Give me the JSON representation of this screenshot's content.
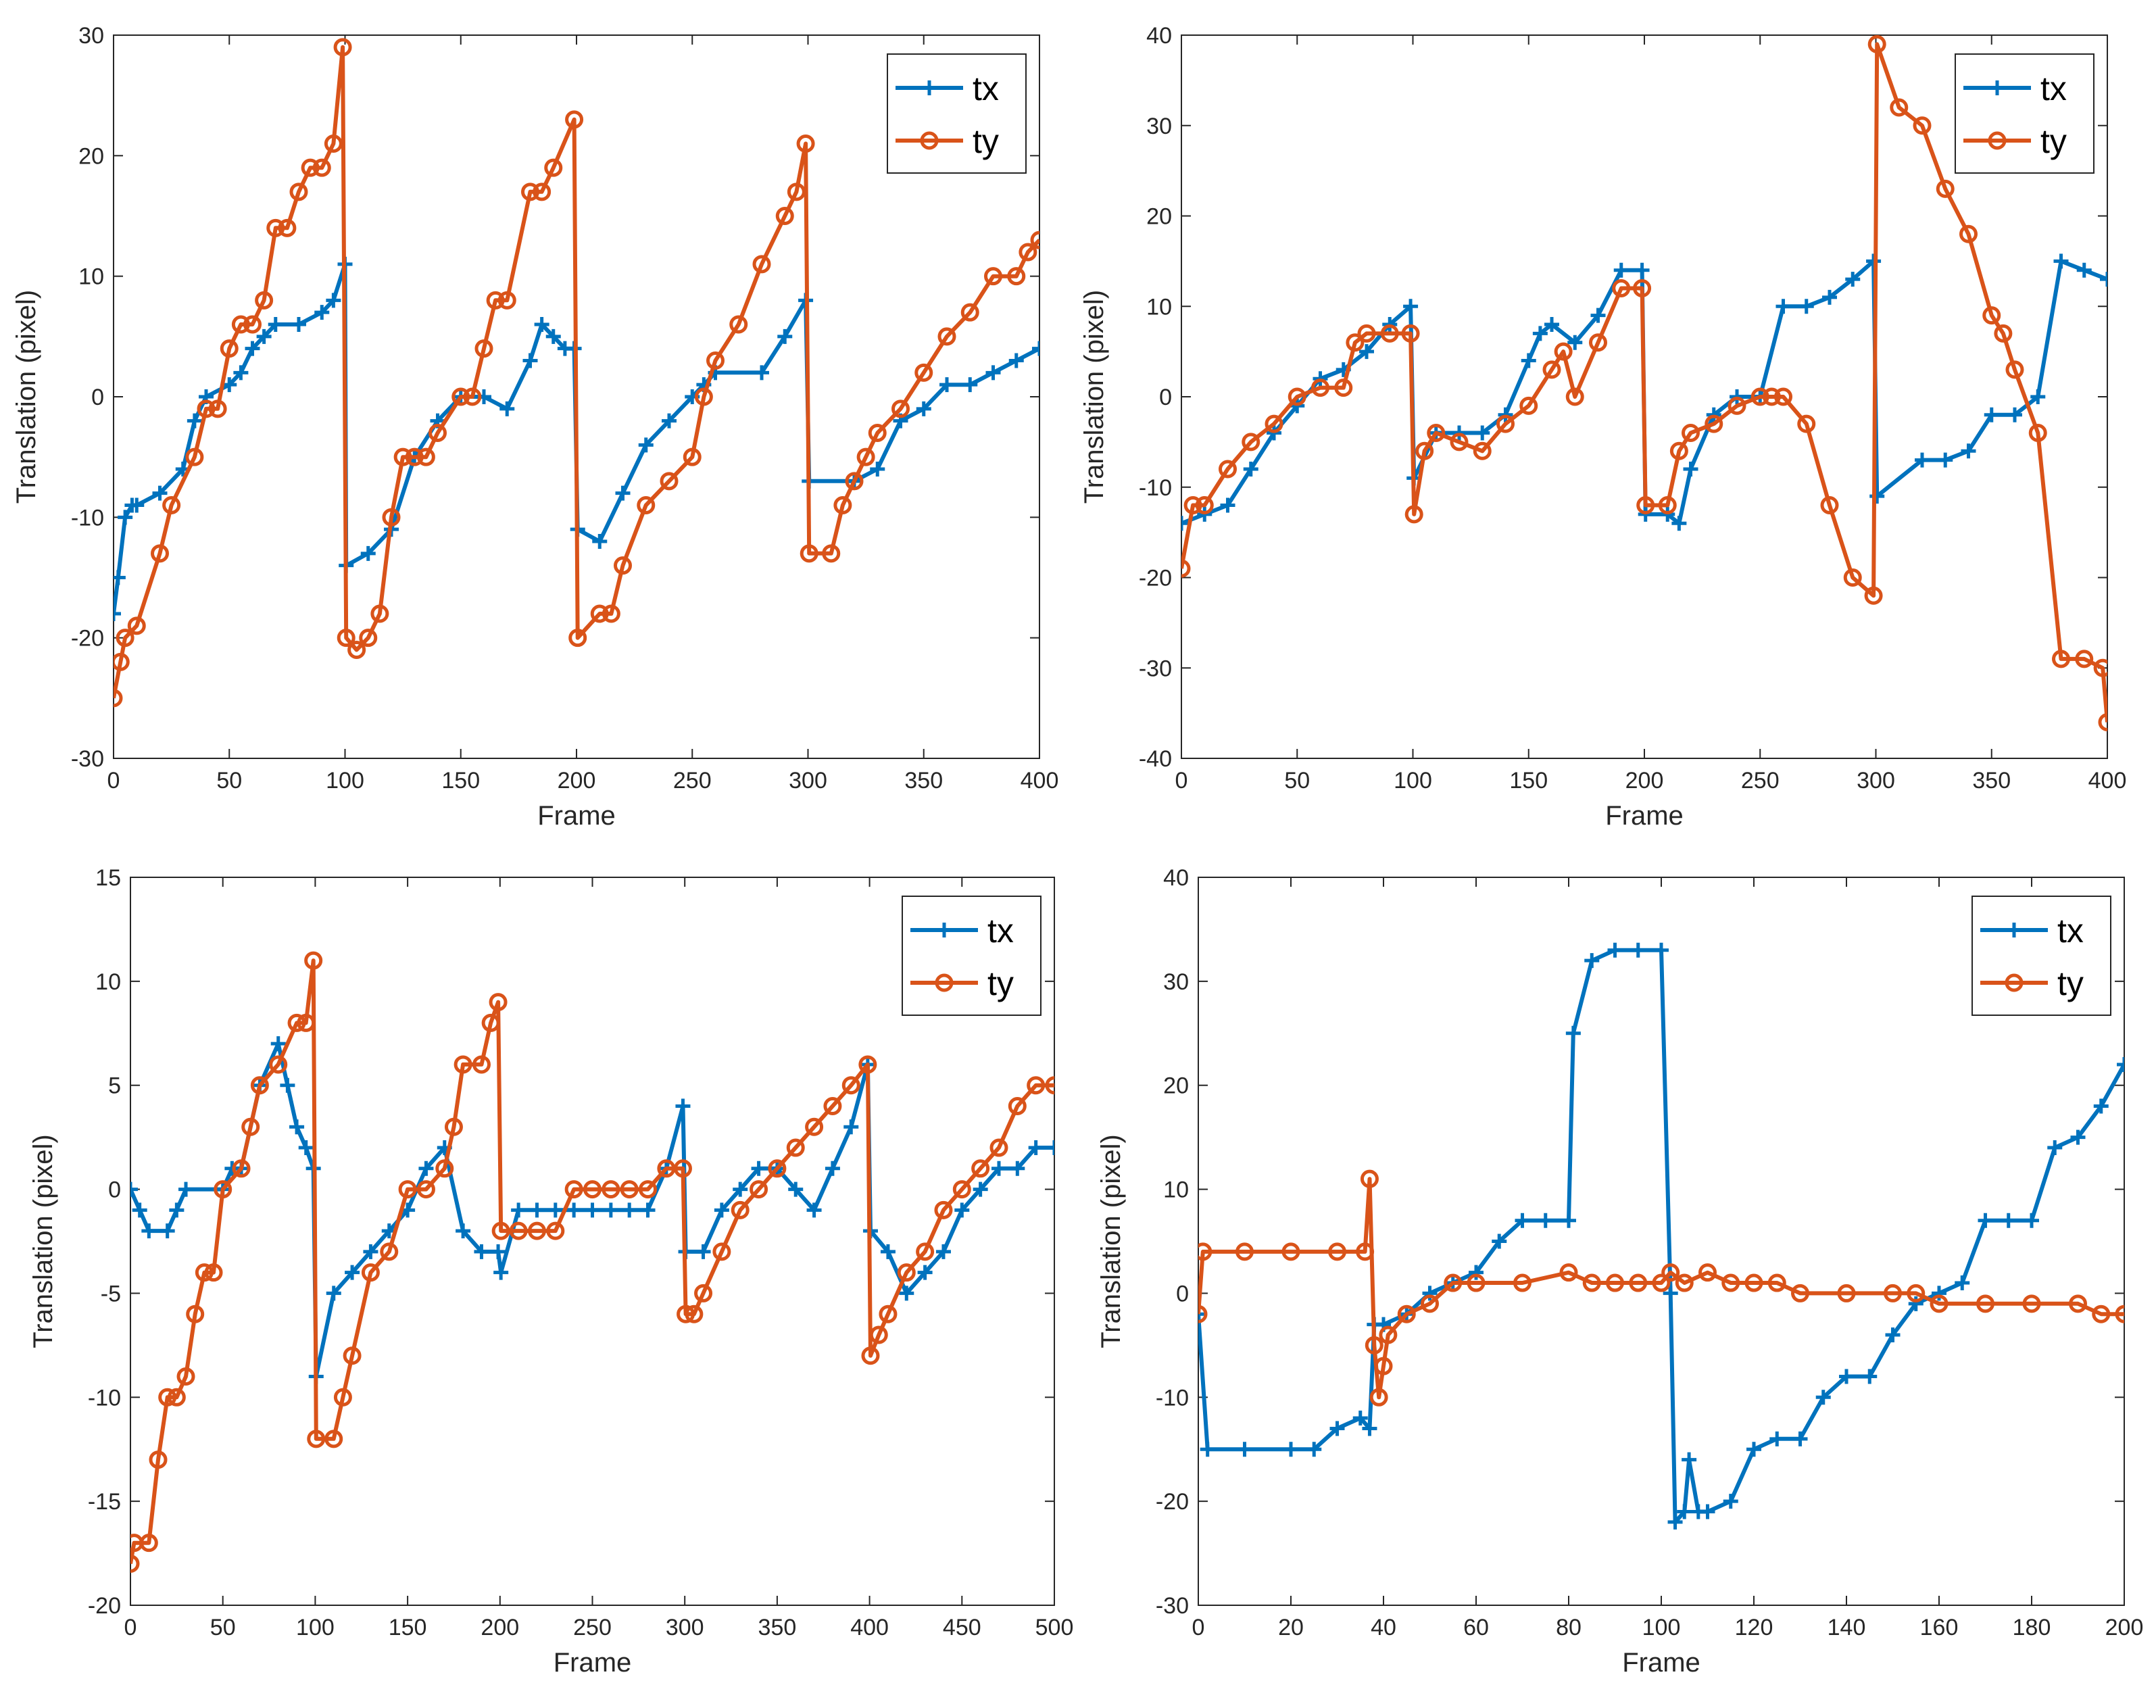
{
  "colors": {
    "tx": "#0072BD",
    "ty": "#D95319",
    "axis": "#262626"
  },
  "chart_data": [
    {
      "type": "line",
      "xlabel": "Frame",
      "ylabel": "Translation (pixel)",
      "xlim": [
        0,
        400
      ],
      "ylim": [
        -30,
        30
      ],
      "xticks": [
        0,
        50,
        100,
        150,
        200,
        250,
        300,
        350,
        400
      ],
      "yticks": [
        -30,
        -20,
        -10,
        0,
        10,
        20,
        30
      ],
      "legend": "top-right",
      "series": [
        {
          "name": "tx",
          "marker": "plus",
          "x": [
            0,
            2,
            5,
            8,
            10,
            20,
            30,
            35,
            40,
            50,
            55,
            60,
            65,
            70,
            80,
            90,
            95,
            100,
            100.5,
            110,
            120,
            130,
            140,
            150,
            160,
            170,
            180,
            185,
            190,
            195,
            199,
            200.5,
            210,
            220,
            230,
            240,
            250,
            255,
            260,
            280,
            290,
            299,
            300.5,
            320,
            330,
            340,
            350,
            360,
            370,
            380,
            390,
            400
          ],
          "y": [
            -18,
            -15,
            -10,
            -9,
            -9,
            -8,
            -6,
            -2,
            0,
            1,
            2,
            4,
            5,
            6,
            6,
            7,
            8,
            11,
            -14,
            -13,
            -11,
            -5,
            -2,
            0,
            0,
            -1,
            3,
            6,
            5,
            4,
            4,
            -11,
            -12,
            -8,
            -4,
            -2,
            0,
            1,
            2,
            2,
            5,
            8,
            -7,
            -7,
            -6,
            -2,
            -1,
            1,
            1,
            2,
            3,
            4
          ]
        },
        {
          "name": "ty",
          "marker": "circle",
          "x": [
            0,
            3,
            5,
            10,
            20,
            25,
            35,
            40,
            45,
            50,
            55,
            60,
            65,
            70,
            75,
            80,
            85,
            90,
            95,
            99,
            100.5,
            105,
            110,
            115,
            120,
            125,
            130,
            135,
            140,
            150,
            155,
            160,
            165,
            170,
            180,
            185,
            190,
            199,
            200.5,
            210,
            215,
            220,
            230,
            240,
            250,
            255,
            260,
            270,
            280,
            290,
            295,
            299,
            300.5,
            310,
            315,
            320,
            325,
            330,
            340,
            350,
            360,
            370,
            380,
            390,
            395,
            400
          ],
          "y": [
            -25,
            -22,
            -20,
            -19,
            -13,
            -9,
            -5,
            -1,
            -1,
            4,
            6,
            6,
            8,
            14,
            14,
            17,
            19,
            19,
            21,
            29,
            -20,
            -21,
            -20,
            -18,
            -10,
            -5,
            -5,
            -5,
            -3,
            0,
            0,
            4,
            8,
            8,
            17,
            17,
            19,
            23,
            -20,
            -18,
            -18,
            -14,
            -9,
            -7,
            -5,
            0,
            3,
            6,
            11,
            15,
            17,
            21,
            -13,
            -13,
            -9,
            -7,
            -5,
            -3,
            -1,
            2,
            5,
            7,
            10,
            10,
            12,
            13
          ]
        }
      ]
    },
    {
      "type": "line",
      "xlabel": "Frame",
      "ylabel": "Translation (pixel)",
      "xlim": [
        0,
        400
      ],
      "ylim": [
        -40,
        40
      ],
      "xticks": [
        0,
        50,
        100,
        150,
        200,
        250,
        300,
        350,
        400
      ],
      "yticks": [
        -40,
        -30,
        -20,
        -10,
        0,
        10,
        20,
        30,
        40
      ],
      "legend": "top-right",
      "series": [
        {
          "name": "tx",
          "marker": "plus",
          "x": [
            0,
            10,
            20,
            30,
            40,
            50,
            60,
            70,
            80,
            90,
            99,
            100.5,
            110,
            120,
            130,
            140,
            150,
            155,
            160,
            170,
            180,
            190,
            199,
            200.5,
            210,
            215,
            220,
            230,
            240,
            250,
            260,
            270,
            280,
            290,
            299,
            300.5,
            320,
            330,
            340,
            350,
            360,
            370,
            380,
            390,
            400
          ],
          "y": [
            -14,
            -13,
            -12,
            -8,
            -4,
            -1,
            2,
            3,
            5,
            8,
            10,
            -9,
            -4,
            -4,
            -4,
            -2,
            4,
            7,
            8,
            6,
            9,
            14,
            14,
            -13,
            -13,
            -14,
            -8,
            -2,
            0,
            0,
            10,
            10,
            11,
            13,
            15,
            -11,
            -7,
            -7,
            -6,
            -2,
            -2,
            0,
            15,
            14,
            13
          ]
        },
        {
          "name": "ty",
          "marker": "circle",
          "x": [
            0,
            5,
            10,
            20,
            30,
            40,
            50,
            60,
            70,
            75,
            80,
            90,
            99,
            100.5,
            105,
            110,
            120,
            130,
            140,
            150,
            160,
            165,
            170,
            180,
            190,
            199,
            200.5,
            210,
            215,
            220,
            230,
            240,
            250,
            255,
            260,
            270,
            280,
            290,
            299,
            300.5,
            310,
            320,
            330,
            340,
            350,
            355,
            360,
            370,
            380,
            390,
            398,
            400
          ],
          "y": [
            -19,
            -12,
            -12,
            -8,
            -5,
            -3,
            0,
            1,
            1,
            6,
            7,
            7,
            7,
            -13,
            -6,
            -4,
            -5,
            -6,
            -3,
            -1,
            3,
            5,
            0,
            6,
            12,
            12,
            -12,
            -12,
            -6,
            -4,
            -3,
            -1,
            0,
            0,
            0,
            -3,
            -12,
            -20,
            -22,
            39,
            32,
            30,
            23,
            18,
            9,
            7,
            3,
            -4,
            -29,
            -29,
            -30,
            -36
          ]
        }
      ]
    },
    {
      "type": "line",
      "xlabel": "Frame",
      "ylabel": "Translation (pixel)",
      "xlim": [
        0,
        500
      ],
      "ylim": [
        -20,
        15
      ],
      "xticks": [
        0,
        50,
        100,
        150,
        200,
        250,
        300,
        350,
        400,
        450,
        500
      ],
      "yticks": [
        -20,
        -15,
        -10,
        -5,
        0,
        5,
        10,
        15
      ],
      "legend": "top-right",
      "series": [
        {
          "name": "tx",
          "marker": "plus",
          "x": [
            0,
            5,
            10,
            20,
            25,
            30,
            50,
            55,
            60,
            70,
            80,
            85,
            90,
            95,
            99,
            100.5,
            110,
            120,
            130,
            140,
            150,
            160,
            170,
            180,
            190,
            199,
            200.5,
            210,
            220,
            230,
            240,
            250,
            260,
            270,
            280,
            290,
            299,
            300.5,
            310,
            320,
            330,
            340,
            350,
            360,
            370,
            380,
            390,
            399,
            400.5,
            410,
            420,
            430,
            440,
            450,
            460,
            470,
            480,
            490,
            500
          ],
          "y": [
            0,
            -1,
            -2,
            -2,
            -1,
            0,
            0,
            1,
            1,
            5,
            7,
            5,
            3,
            2,
            1,
            -9,
            -5,
            -4,
            -3,
            -2,
            -1,
            1,
            2,
            -2,
            -3,
            -3,
            -4,
            -1,
            -1,
            -1,
            -1,
            -1,
            -1,
            -1,
            -1,
            1,
            4,
            -3,
            -3,
            -1,
            0,
            1,
            1,
            0,
            -1,
            1,
            3,
            6,
            -2,
            -3,
            -5,
            -4,
            -3,
            -1,
            0,
            1,
            1,
            2,
            2
          ]
        },
        {
          "name": "ty",
          "marker": "circle",
          "x": [
            0,
            2,
            10,
            15,
            20,
            25,
            30,
            35,
            40,
            45,
            50,
            60,
            65,
            70,
            80,
            90,
            95,
            99,
            100.5,
            110,
            115,
            120,
            130,
            140,
            150,
            160,
            170,
            175,
            180,
            190,
            195,
            199,
            200.5,
            210,
            220,
            230,
            240,
            250,
            260,
            270,
            280,
            290,
            299,
            300.5,
            305,
            310,
            320,
            330,
            340,
            350,
            360,
            370,
            380,
            390,
            399,
            400.5,
            405,
            410,
            420,
            430,
            440,
            450,
            460,
            470,
            480,
            490,
            500
          ],
          "y": [
            -18,
            -17,
            -17,
            -13,
            -10,
            -10,
            -9,
            -6,
            -4,
            -4,
            0,
            1,
            3,
            5,
            6,
            8,
            8,
            11,
            -12,
            -12,
            -10,
            -8,
            -4,
            -3,
            0,
            0,
            1,
            3,
            6,
            6,
            8,
            9,
            -2,
            -2,
            -2,
            -2,
            0,
            0,
            0,
            0,
            0,
            1,
            1,
            -6,
            -6,
            -5,
            -3,
            -1,
            0,
            1,
            2,
            3,
            4,
            5,
            6,
            -8,
            -7,
            -6,
            -4,
            -3,
            -1,
            0,
            1,
            2,
            4,
            5,
            5
          ]
        }
      ]
    },
    {
      "type": "line",
      "xlabel": "Frame",
      "ylabel": "Translation (pixel)",
      "xlim": [
        0,
        200
      ],
      "ylim": [
        -30,
        40
      ],
      "xticks": [
        0,
        20,
        40,
        60,
        80,
        100,
        120,
        140,
        160,
        180,
        200
      ],
      "yticks": [
        -30,
        -20,
        -10,
        0,
        10,
        20,
        30,
        40
      ],
      "legend": "top-right",
      "series": [
        {
          "name": "tx",
          "marker": "plus",
          "x": [
            0,
            2,
            10,
            20,
            25,
            30,
            35,
            37,
            38,
            40,
            45,
            50,
            55,
            60,
            65,
            70,
            75,
            80,
            81,
            85,
            90,
            95,
            100,
            102,
            103,
            105,
            106,
            108,
            110,
            115,
            120,
            125,
            130,
            135,
            140,
            145,
            150,
            155,
            160,
            165,
            170,
            175,
            180,
            185,
            190,
            195,
            200
          ],
          "y": [
            -2,
            -15,
            -15,
            -15,
            -15,
            -13,
            -12,
            -13,
            -3,
            -3,
            -2,
            0,
            1,
            2,
            5,
            7,
            7,
            7,
            25,
            32,
            33,
            33,
            33,
            0,
            -22,
            -21,
            -16,
            -21,
            -21,
            -20,
            -15,
            -14,
            -14,
            -10,
            -8,
            -8,
            -4,
            -1,
            0,
            1,
            7,
            7,
            7,
            14,
            15,
            18,
            22
          ]
        },
        {
          "name": "ty",
          "marker": "circle",
          "x": [
            0,
            1,
            10,
            20,
            30,
            36,
            37,
            38,
            39,
            40,
            41,
            45,
            50,
            55,
            60,
            70,
            80,
            85,
            90,
            95,
            100,
            102,
            105,
            110,
            115,
            120,
            125,
            130,
            140,
            150,
            155,
            160,
            170,
            180,
            190,
            195,
            200
          ],
          "y": [
            -2,
            4,
            4,
            4,
            4,
            4,
            11,
            -5,
            -10,
            -7,
            -4,
            -2,
            -1,
            1,
            1,
            1,
            2,
            1,
            1,
            1,
            1,
            2,
            1,
            2,
            1,
            1,
            1,
            0,
            0,
            0,
            0,
            -1,
            -1,
            -1,
            -1,
            -2,
            -2
          ]
        }
      ]
    }
  ]
}
